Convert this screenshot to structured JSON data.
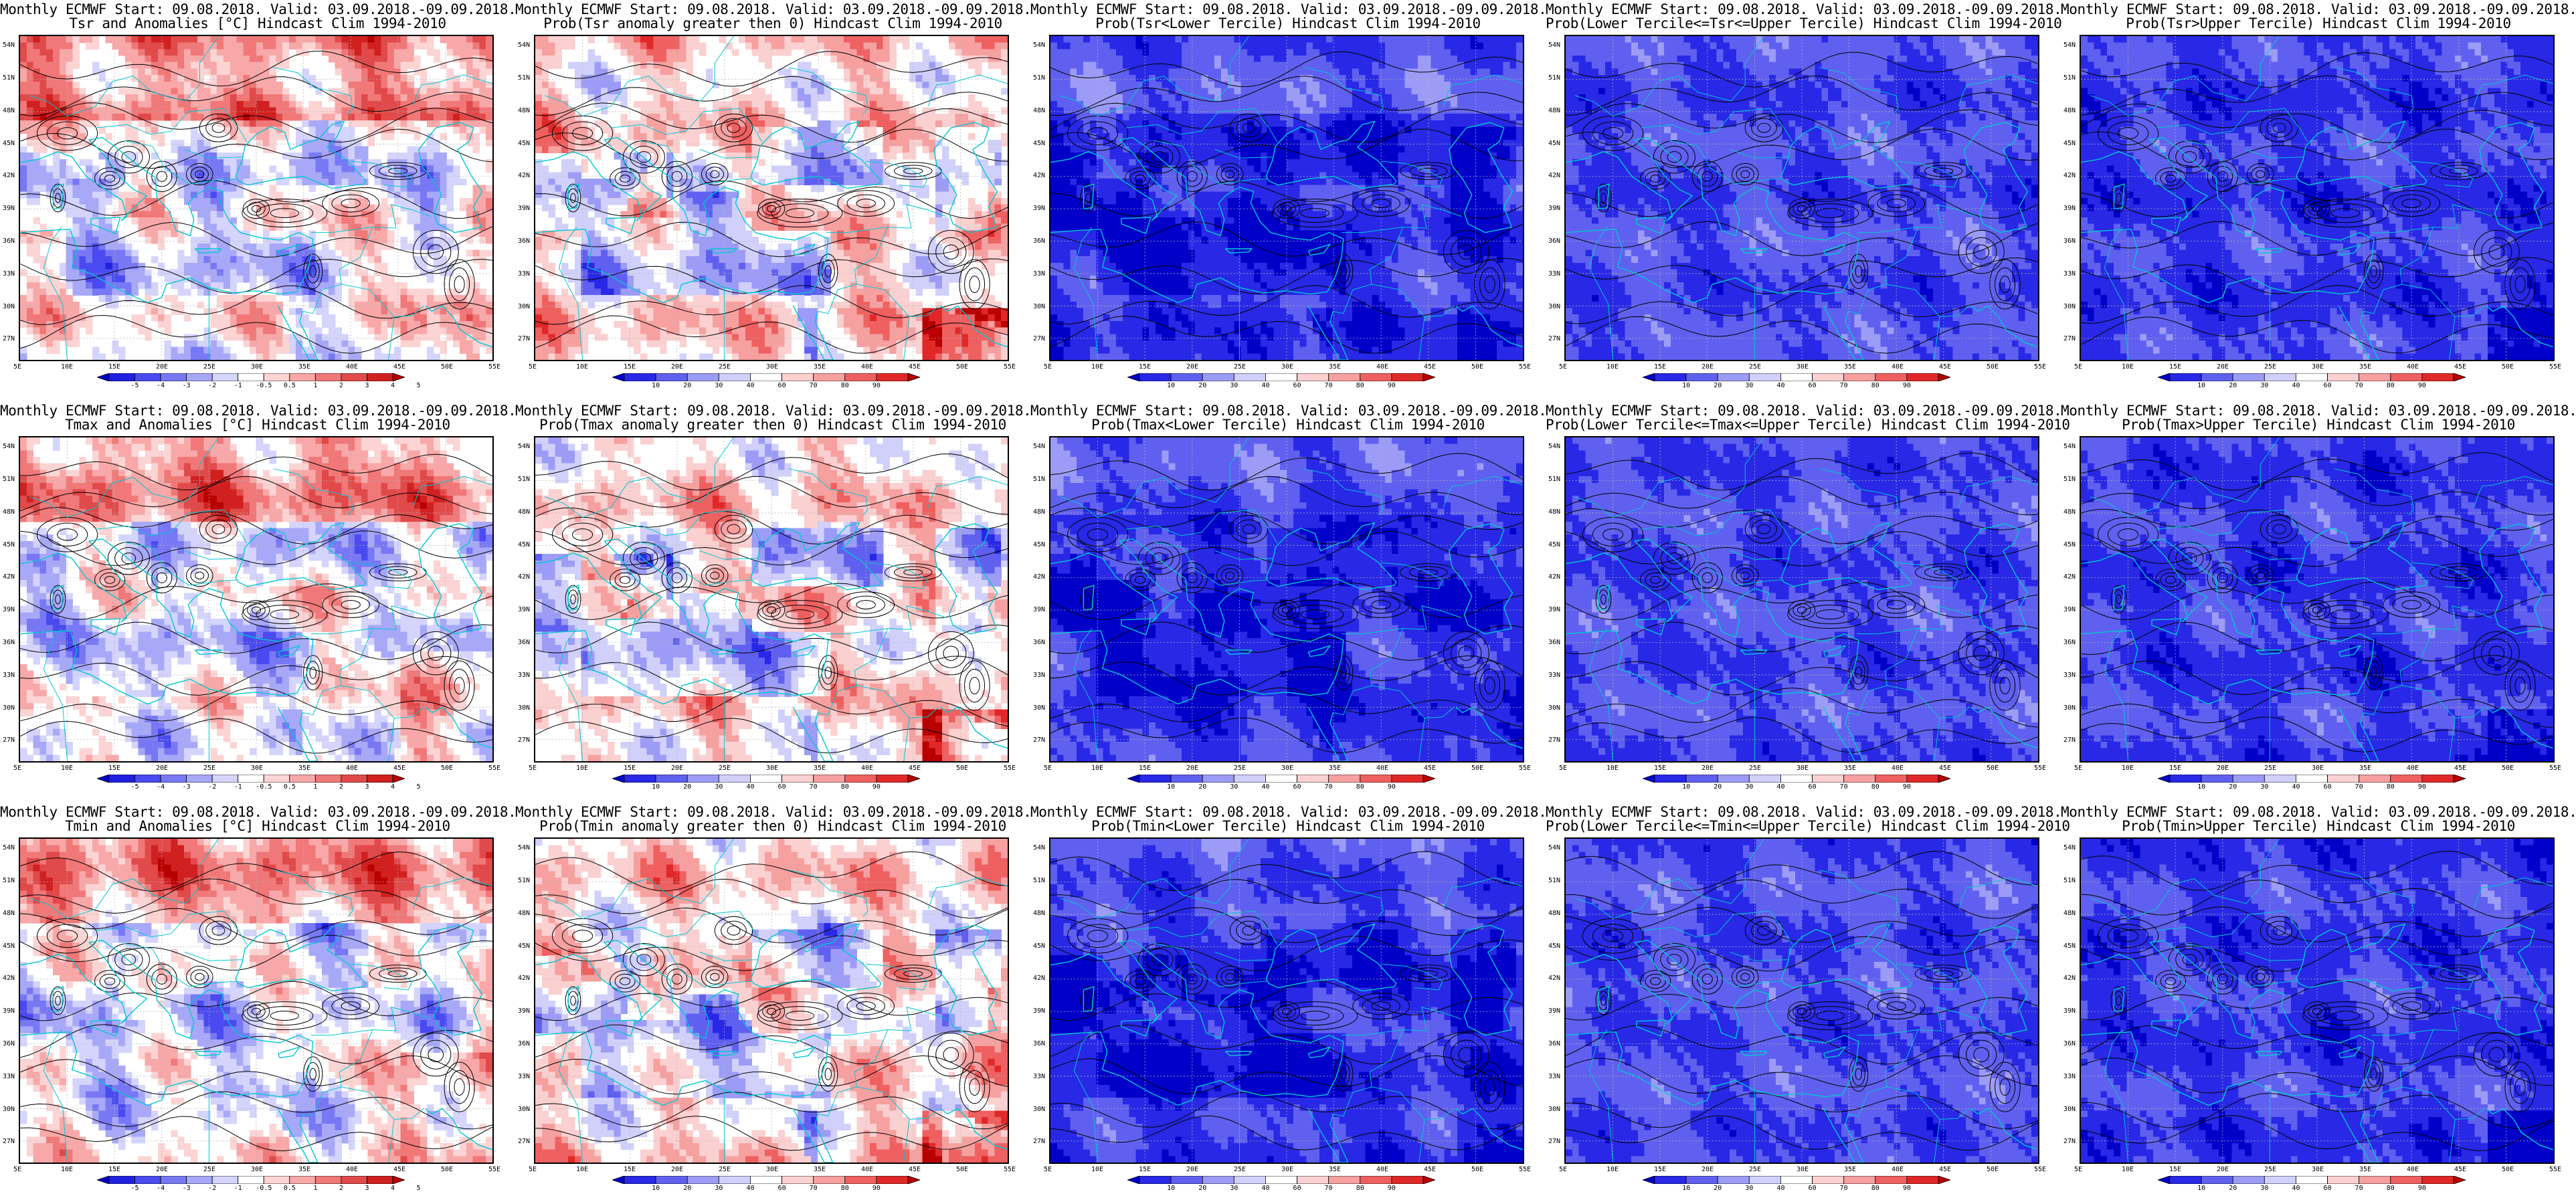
{
  "panels": [
    {
      "line1": "Monthly ECMWF Start: 09.08.2018. Valid: 03.09.2018.-09.09.2018.",
      "line2": "Tsr and Anomalies [°C] Hindcast Clim 1994-2010",
      "kind": "anom",
      "seed": 11
    },
    {
      "line1": "Monthly ECMWF Start: 09.08.2018. Valid: 03.09.2018.-09.09.2018.",
      "line2": "Prob(Tsr anomaly greater then 0) Hindcast Clim 1994-2010",
      "kind": "pos",
      "seed": 12
    },
    {
      "line1": "Monthly ECMWF Start: 09.08.2018. Valid: 03.09.2018.-09.09.2018.",
      "line2": "Prob(Tsr<Lower Tercile) Hindcast Clim 1994-2010",
      "kind": "low",
      "seed": 13
    },
    {
      "line1": "Monthly ECMWF Start: 09.08.2018. Valid: 03.09.2018.-09.09.2018.",
      "line2": "Prob(Lower Tercile<=Tsr<=Upper Tercile) Hindcast Clim 1994-2010",
      "kind": "mid",
      "seed": 14
    },
    {
      "line1": "Monthly ECMWF Start: 09.08.2018. Valid: 03.09.2018.-09.09.2018.",
      "line2": "Prob(Tsr>Upper Tercile) Hindcast Clim 1994-2010",
      "kind": "up",
      "seed": 15
    },
    {
      "line1": "Monthly ECMWF Start: 09.08.2018. Valid: 03.09.2018.-09.09.2018.",
      "line2": "Tmax and Anomalies [°C] Hindcast Clim 1994-2010",
      "kind": "anom",
      "seed": 21
    },
    {
      "line1": "Monthly ECMWF Start: 09.08.2018. Valid: 03.09.2018.-09.09.2018.",
      "line2": "Prob(Tmax anomaly greater then 0) Hindcast Clim 1994-2010",
      "kind": "pos",
      "seed": 22
    },
    {
      "line1": "Monthly ECMWF Start: 09.08.2018. Valid: 03.09.2018.-09.09.2018.",
      "line2": "Prob(Tmax<Lower Tercile) Hindcast Clim 1994-2010",
      "kind": "low",
      "seed": 23
    },
    {
      "line1": "Monthly ECMWF Start: 09.08.2018. Valid: 03.09.2018.-09.09.2018.",
      "line2": "Prob(Lower Tercile<=Tmax<=Upper Tercile) Hindcast Clim 1994-2010",
      "kind": "mid",
      "seed": 24
    },
    {
      "line1": "Monthly ECMWF Start: 09.08.2018. Valid: 03.09.2018.-09.09.2018.",
      "line2": "Prob(Tmax>Upper Tercile) Hindcast Clim 1994-2010",
      "kind": "up",
      "seed": 25
    },
    {
      "line1": "Monthly ECMWF Start: 09.08.2018. Valid: 03.09.2018.-09.09.2018.",
      "line2": "Tmin and Anomalies [°C] Hindcast Clim 1994-2010",
      "kind": "anom",
      "seed": 31
    },
    {
      "line1": "Monthly ECMWF Start: 09.08.2018. Valid: 03.09.2018.-09.09.2018.",
      "line2": "Prob(Tmin anomaly greater then 0) Hindcast Clim 1994-2010",
      "kind": "pos",
      "seed": 32
    },
    {
      "line1": "Monthly ECMWF Start: 09.08.2018. Valid: 03.09.2018.-09.09.2018.",
      "line2": "Prob(Tmin<Lower Tercile) Hindcast Clim 1994-2010",
      "kind": "low",
      "seed": 33
    },
    {
      "line1": "Monthly ECMWF Start: 09.08.2018. Valid: 03.09.2018.-09.09.2018.",
      "line2": "Prob(Lower Tercile<=Tmin<=Upper Tercile) Hindcast Clim 1994-2010",
      "kind": "mid",
      "seed": 34
    },
    {
      "line1": "Monthly ECMWF Start: 09.08.2018. Valid: 03.09.2018.-09.09.2018.",
      "line2": "Prob(Tmin>Upper Tercile) Hindcast Clim 1994-2010",
      "kind": "up",
      "seed": 35
    }
  ],
  "lat_labels": [
    "54N",
    "51N",
    "48N",
    "45N",
    "42N",
    "39N",
    "36N",
    "33N",
    "30N",
    "27N"
  ],
  "lon_labels": [
    "5E",
    "10E",
    "15E",
    "20E",
    "25E",
    "30E",
    "35E",
    "40E",
    "45E",
    "50E",
    "55E"
  ],
  "anom_scale": {
    "labels": [
      "-5",
      "-4",
      "-3",
      "-2",
      "-1",
      "-0.5",
      "0.5",
      "1",
      "2",
      "3",
      "4",
      "5"
    ],
    "colors": [
      "#0000c8",
      "#2020e0",
      "#4a4af0",
      "#7878f5",
      "#a8a8f8",
      "#d4d4fc",
      "#ffffff",
      "#fcd4d4",
      "#f8a8a8",
      "#f07878",
      "#e04a4a",
      "#d02020",
      "#b80000"
    ]
  },
  "prob_scale": {
    "labels": [
      "10",
      "20",
      "30",
      "40",
      "60",
      "70",
      "80",
      "90"
    ],
    "colors": [
      "#0000c8",
      "#2828e6",
      "#6060f0",
      "#9c9cf6",
      "#d0d0fb",
      "#ffffff",
      "#fbd0d0",
      "#f6a0a0",
      "#ef6060",
      "#e02828",
      "#b80000"
    ]
  },
  "map_colors": {
    "coast": "#00c8d2",
    "contour": "#000000",
    "grid": "#b4b4b4"
  }
}
